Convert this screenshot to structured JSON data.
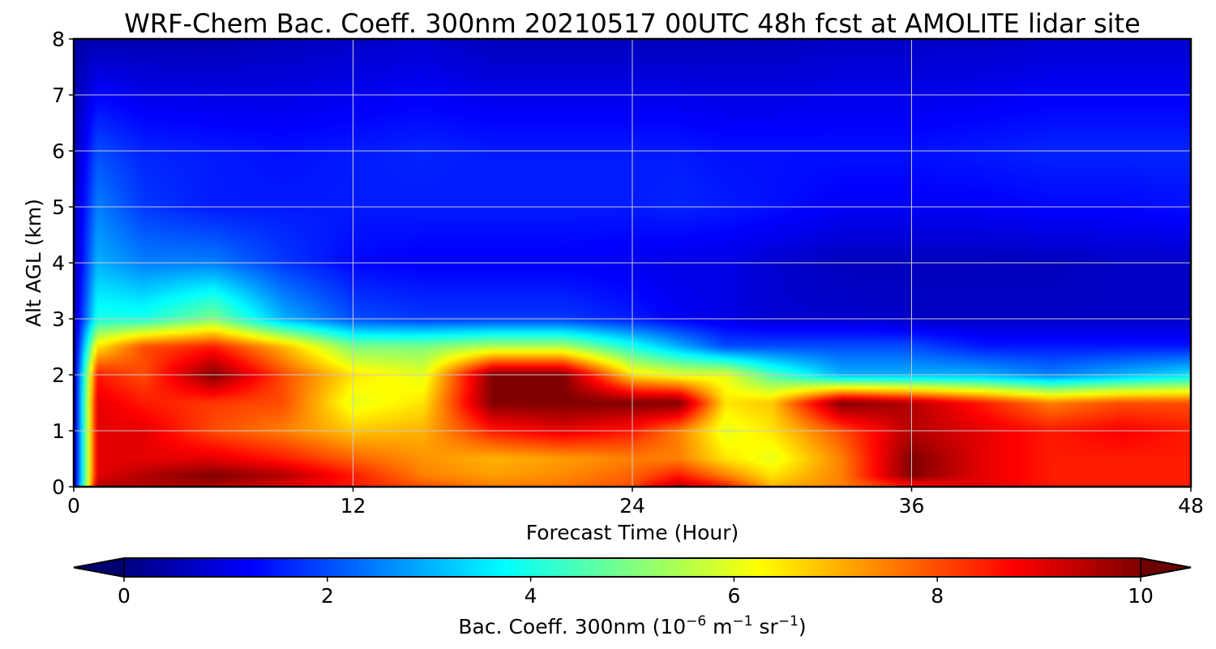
{
  "chart_data": {
    "type": "heatmap",
    "title": "WRF-Chem Bac. Coeff. 300nm  20210517 00UTC 48h fcst at AMOLITE lidar site",
    "xlabel": "Forecast Time (Hour)",
    "ylabel": "Alt AGL (km)",
    "xlim": [
      0,
      48
    ],
    "ylim": [
      0,
      8
    ],
    "x_ticks": [
      "0",
      "12",
      "24",
      "36",
      "48"
    ],
    "y_ticks": [
      "0",
      "1",
      "2",
      "3",
      "4",
      "5",
      "6",
      "7",
      "8"
    ],
    "grid": true,
    "colormap": "jet",
    "colorbar": {
      "label_main": "Bac. Coeff. 300nm  (10",
      "exp1": "−6",
      "unit_m": " m",
      "exp2": "−1",
      "unit_sr": " sr",
      "exp3": "−1",
      "label_end": ")",
      "range": [
        0,
        10
      ],
      "ticks": [
        "0",
        "2",
        "4",
        "6",
        "8",
        "10"
      ],
      "extend": "both",
      "orientation": "horizontal"
    },
    "field_times_h": [
      0,
      1,
      3,
      6,
      9,
      12,
      15,
      18,
      21,
      24,
      26,
      28,
      30,
      33,
      36,
      39,
      42,
      45,
      48
    ],
    "field_altitudes_km": [
      0,
      0.2,
      0.5,
      1.0,
      1.5,
      2.0,
      2.5,
      3.0,
      4.0,
      5.0,
      6.0,
      8.0
    ],
    "field_values": [
      [
        0.5,
        9.5,
        9.5,
        9.5,
        9.0,
        8.5,
        8.0,
        7.5,
        7.6,
        8.0,
        9.5,
        8.5,
        7.0,
        7.5,
        8.5,
        9.0,
        8.5,
        8.5,
        8.5
      ],
      [
        0.5,
        9.0,
        9.5,
        10.0,
        9.5,
        8.5,
        7.5,
        7.2,
        7.4,
        7.8,
        8.5,
        7.5,
        6.5,
        7.5,
        10.0,
        9.0,
        8.5,
        8.5,
        8.5
      ],
      [
        0.5,
        9.0,
        9.0,
        9.0,
        8.5,
        7.8,
        7.3,
        7.0,
        7.2,
        7.5,
        7.5,
        6.5,
        6.0,
        7.5,
        10.0,
        9.0,
        8.5,
        8.5,
        8.5
      ],
      [
        0.5,
        9.0,
        9.0,
        8.0,
        7.5,
        6.8,
        7.0,
        8.5,
        9.0,
        8.5,
        7.5,
        6.0,
        6.5,
        8.0,
        9.5,
        9.0,
        8.5,
        8.8,
        8.5
      ],
      [
        0.5,
        9.0,
        8.5,
        8.2,
        8.0,
        6.0,
        6.5,
        10.0,
        10.0,
        10.0,
        10.0,
        6.5,
        6.8,
        10.0,
        9.5,
        8.5,
        7.5,
        8.0,
        8.0
      ],
      [
        0.5,
        8.5,
        8.0,
        10.0,
        8.0,
        6.5,
        6.0,
        10.0,
        10.0,
        6.5,
        6.0,
        6.0,
        4.5,
        3.0,
        3.0,
        3.0,
        2.5,
        3.0,
        3.5
      ],
      [
        0.5,
        6.5,
        8.0,
        8.5,
        7.0,
        5.0,
        5.0,
        5.5,
        5.5,
        4.0,
        3.0,
        2.0,
        2.0,
        2.0,
        2.0,
        1.5,
        1.5,
        1.5,
        1.5
      ],
      [
        0.5,
        4.0,
        4.0,
        5.0,
        3.0,
        2.0,
        1.8,
        1.8,
        1.8,
        1.5,
        1.2,
        1.0,
        0.8,
        0.8,
        0.7,
        0.7,
        0.7,
        0.7,
        0.7
      ],
      [
        0.5,
        3.0,
        2.5,
        2.5,
        1.8,
        1.3,
        1.2,
        1.2,
        1.2,
        1.1,
        1.0,
        1.0,
        0.8,
        0.6,
        0.6,
        0.6,
        0.6,
        0.7,
        0.7
      ],
      [
        0.5,
        2.5,
        1.8,
        1.5,
        1.5,
        1.5,
        1.5,
        1.5,
        1.5,
        1.5,
        1.6,
        1.5,
        1.4,
        1.2,
        1.2,
        1.2,
        1.3,
        1.3,
        1.4
      ],
      [
        0.5,
        2.0,
        1.6,
        1.5,
        1.4,
        1.5,
        1.6,
        1.5,
        1.5,
        1.5,
        1.5,
        1.4,
        1.4,
        1.4,
        1.4,
        1.5,
        1.6,
        1.6,
        1.6
      ],
      [
        0.4,
        0.5,
        0.5,
        0.5,
        0.6,
        0.7,
        0.8,
        0.6,
        0.6,
        0.6,
        0.6,
        0.6,
        0.6,
        0.7,
        0.7,
        0.7,
        0.8,
        0.8,
        0.8
      ]
    ]
  }
}
